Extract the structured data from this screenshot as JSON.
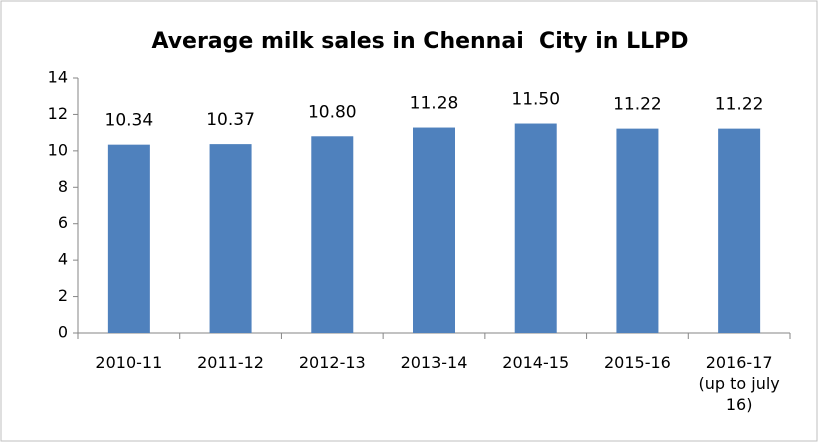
{
  "chart_data": {
    "type": "bar",
    "title": "Average milk sales in Chennai  City in LLPD",
    "categories": [
      "2010-11",
      "2011-12",
      "2012-13",
      "2013-14",
      "2014-15",
      "2015-16",
      "2016-17 (up to july 16)"
    ],
    "values": [
      10.34,
      10.37,
      10.8,
      11.28,
      11.5,
      11.22,
      11.22
    ],
    "value_labels": [
      "10.34",
      "10.37",
      "10.80",
      "11.28",
      "11.50",
      "11.22",
      "11.22"
    ],
    "color": "#4f81bd",
    "ylim": [
      0,
      14
    ],
    "yticks": [
      0,
      2,
      4,
      6,
      8,
      10,
      12,
      14
    ],
    "grid": false
  }
}
